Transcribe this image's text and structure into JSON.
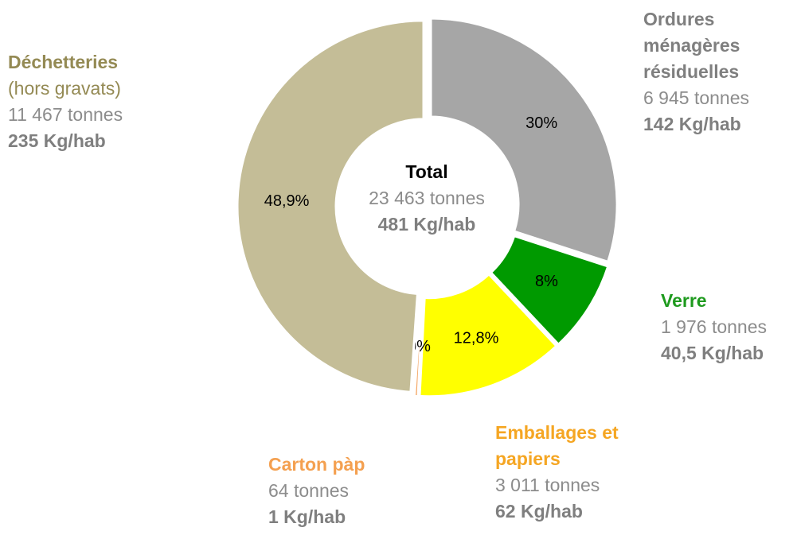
{
  "chart_data": {
    "type": "donut",
    "categories": [
      "Ordures ménagères résiduelles",
      "Verre",
      "Emballages et papiers",
      "Carton pàp",
      "Déchetteries"
    ],
    "values": [
      30,
      8,
      12.8,
      0.3,
      48.9
    ],
    "value_labels": [
      "30%",
      "8%",
      "12,8%",
      "0%",
      "48,9%"
    ],
    "colors": [
      "#a6a6a6",
      "#009a00",
      "#ffff00",
      "#f4a460",
      "#c4bd97"
    ],
    "label_colors": [
      "#7f7f7f",
      "#1e9a1e",
      "#f5a623",
      "#f4a050",
      "#948a54"
    ],
    "tonnage": [
      "6 945 tonnes",
      "1 976 tonnes",
      "3 011 tonnes",
      "64 tonnes",
      "11 467 tonnes"
    ],
    "per_capita": [
      "142 Kg/hab",
      "40,5 Kg/hab",
      "62 Kg/hab",
      "1 Kg/hab",
      "235 Kg/hab"
    ],
    "annotations": [
      "(hors gravats)"
    ],
    "center_label": {
      "title": "Total",
      "tonnage": "23 463 tonnes",
      "per_capita": "481 Kg/hab"
    }
  }
}
